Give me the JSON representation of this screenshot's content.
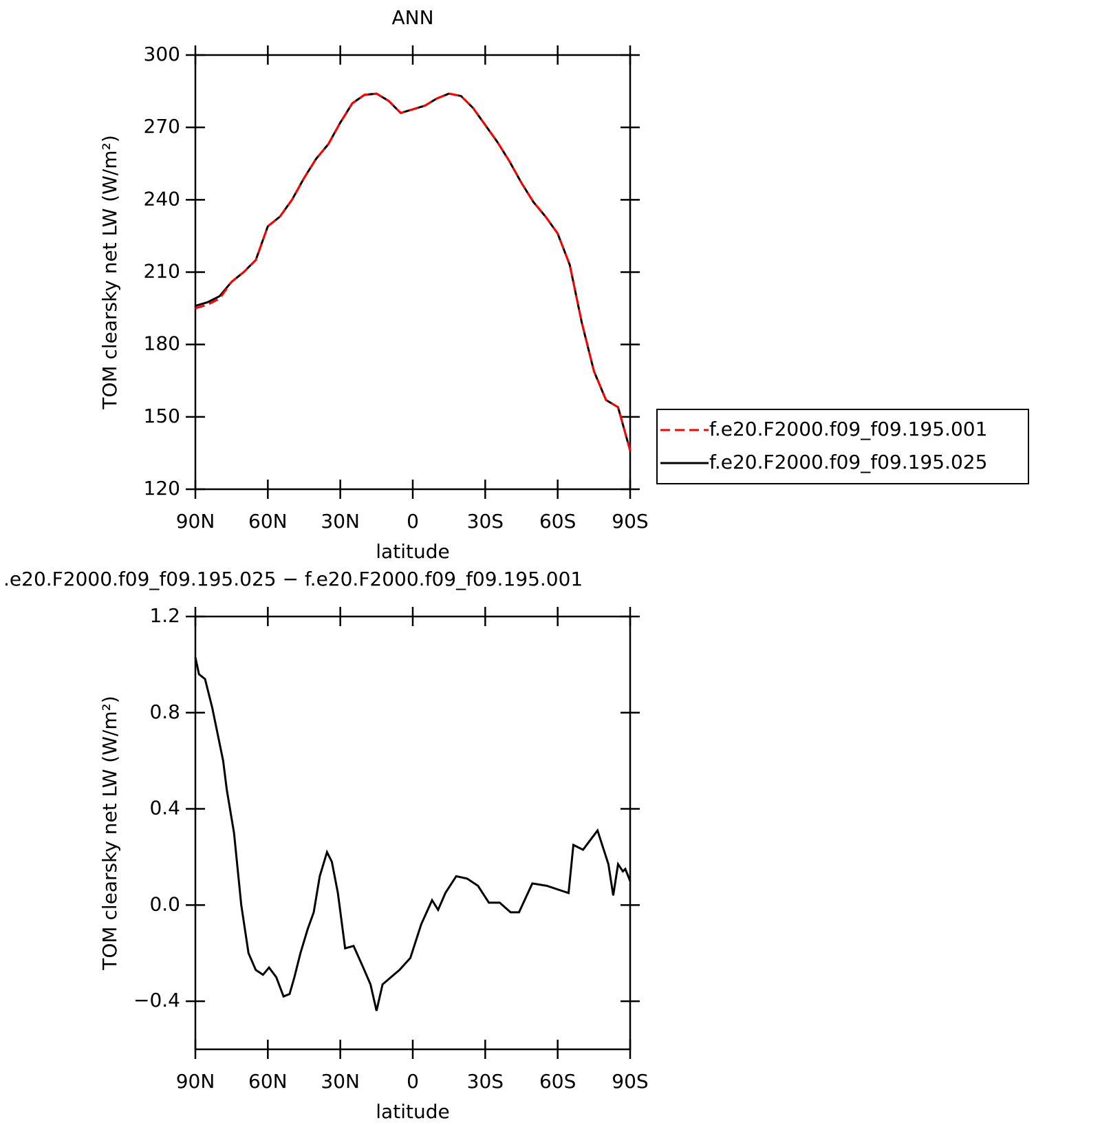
{
  "chart_data": [
    {
      "type": "line",
      "title": "ANN",
      "x_label": "latitude",
      "y_label": "TOM clearsky net LW (W/m²)",
      "x": [
        90,
        85,
        80,
        75,
        70,
        65,
        60,
        55,
        50,
        45,
        40,
        35,
        30,
        25,
        20,
        15,
        10,
        5,
        0,
        -5,
        -10,
        -15,
        -20,
        -25,
        -30,
        -35,
        -40,
        -45,
        -50,
        -55,
        -60,
        -65,
        -70,
        -75,
        -80,
        -85,
        -90
      ],
      "series": [
        {
          "name": "f.e20.F2000.f09_f09.195.001",
          "color": "#ff0000",
          "dash": true,
          "values": [
            195,
            196.5,
            199,
            206,
            210,
            215,
            229,
            233,
            240,
            249,
            257,
            263,
            272,
            280,
            283.5,
            284,
            281,
            276,
            277.5,
            279,
            282,
            284,
            283,
            278,
            271,
            264,
            256,
            247,
            239,
            233,
            226,
            213,
            189,
            169,
            157,
            154,
            136
          ]
        },
        {
          "name": "f.e20.F2000.f09_f09.195.025",
          "color": "#000000",
          "dash": false,
          "values": [
            196,
            197.5,
            200,
            206,
            210,
            215,
            229,
            233,
            240,
            249,
            257,
            263,
            272,
            280,
            283.5,
            284,
            281,
            276,
            277.5,
            279,
            282,
            284,
            283,
            278,
            271,
            264,
            256,
            247,
            239,
            233,
            226,
            213,
            189,
            169,
            157,
            154,
            136
          ]
        }
      ],
      "xlim": [
        90,
        -90
      ],
      "xticks": [
        {
          "value": 90,
          "label": "90N"
        },
        {
          "value": 60,
          "label": "60N"
        },
        {
          "value": 30,
          "label": "30N"
        },
        0,
        {
          "value": -30,
          "label": "30S"
        },
        {
          "value": -60,
          "label": "60S"
        },
        {
          "value": -90,
          "label": "90S"
        }
      ],
      "ylim": [
        120,
        300
      ],
      "yticks": [
        120,
        150,
        180,
        210,
        240,
        270,
        300
      ],
      "legend": "right"
    },
    {
      "type": "line",
      "title": ".e20.F2000.f09_f09.195.025 − f.e20.F2000.f09_f09.195.001",
      "x_label": "latitude",
      "y_label": "TOM clearsky net LW (W/m²)",
      "x": [
        90,
        88.5,
        86,
        83,
        78.5,
        77,
        74,
        71,
        68,
        65,
        62,
        59.5,
        56.5,
        53.5,
        51,
        49,
        46.5,
        43.5,
        41,
        38.5,
        35.5,
        33.5,
        31,
        28,
        24.5,
        20.5,
        17.5,
        15,
        12.5,
        9,
        5.5,
        1,
        -3.5,
        -8,
        -10.5,
        -13.5,
        -18,
        -22.5,
        -27,
        -31.5,
        -36,
        -40.5,
        -44,
        -49.5,
        -55.5,
        -61.5,
        -64.5,
        -66.5,
        -70.5,
        -76.5,
        -81,
        -83,
        -85,
        -87,
        -88,
        -90
      ],
      "series": [
        {
          "color": "#000000",
          "dash": false,
          "values": [
            1.03,
            0.96,
            0.94,
            0.82,
            0.6,
            0.48,
            0.3,
            0.0,
            -0.2,
            -0.27,
            -0.29,
            -0.26,
            -0.3,
            -0.38,
            -0.37,
            -0.3,
            -0.2,
            -0.1,
            -0.03,
            0.12,
            0.22,
            0.18,
            0.05,
            -0.18,
            -0.17,
            -0.26,
            -0.33,
            -0.44,
            -0.33,
            -0.3,
            -0.27,
            -0.22,
            -0.08,
            0.02,
            -0.02,
            0.05,
            0.12,
            0.11,
            0.08,
            0.01,
            0.01,
            -0.03,
            -0.03,
            0.09,
            0.08,
            0.06,
            0.05,
            0.25,
            0.23,
            0.31,
            0.17,
            0.04,
            0.17,
            0.14,
            0.15,
            0.1
          ]
        }
      ],
      "xlim": [
        90,
        -90
      ],
      "xticks": [
        {
          "value": 90,
          "label": "90N"
        },
        {
          "value": 60,
          "label": "60N"
        },
        {
          "value": 30,
          "label": "30N"
        },
        0,
        {
          "value": -30,
          "label": "30S"
        },
        {
          "value": -60,
          "label": "60S"
        },
        {
          "value": -90,
          "label": "90S"
        }
      ],
      "ylim": [
        -0.6,
        1.2
      ],
      "yticks": [
        {
          "value": -0.4,
          "label": "−0.4"
        },
        {
          "value": 0,
          "label": "0.0"
        },
        0.4,
        0.8,
        1.2
      ]
    }
  ]
}
